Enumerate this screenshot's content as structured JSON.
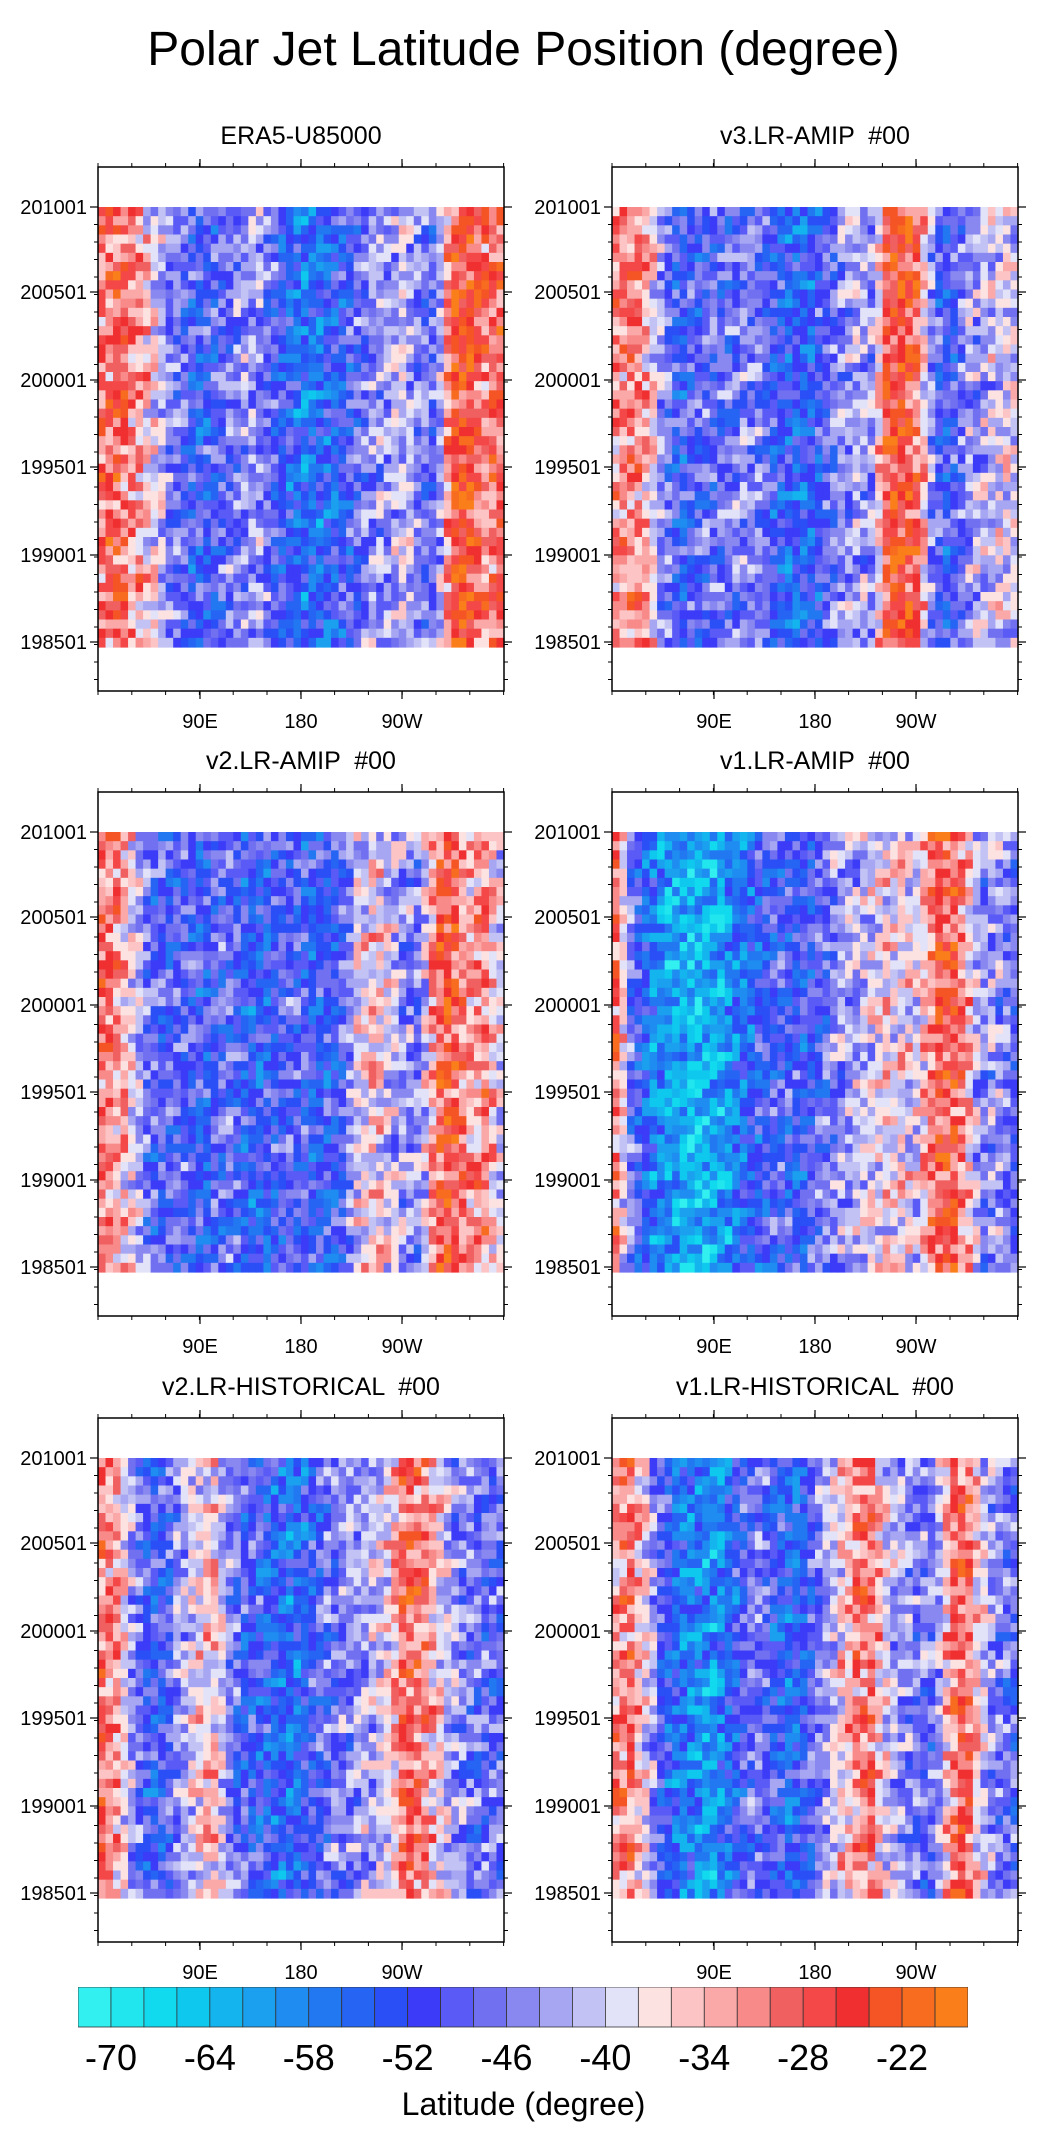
{
  "title": "Polar Jet Latitude Position (degree)",
  "colorbar": {
    "label": "Latitude (degree)",
    "levels": [
      -70,
      -68,
      -66,
      -64,
      -62,
      -60,
      -58,
      -56,
      -54,
      -52,
      -50,
      -48,
      -46,
      -44,
      -42,
      -40,
      -38,
      -36,
      -34,
      -32,
      -30,
      -28,
      -26,
      -24,
      -22,
      -20
    ],
    "tick_labels": [
      "-70",
      "-64",
      "-58",
      "-52",
      "-46",
      "-40",
      "-34",
      "-28",
      "-22"
    ],
    "colors": [
      "#33f0f0",
      "#22e6ee",
      "#11d9ee",
      "#0fc8ee",
      "#14b4ee",
      "#1aa0ee",
      "#1e8cf0",
      "#2278f0",
      "#2664f4",
      "#2a4ff6",
      "#3b3bf8",
      "#5a5af6",
      "#7070f0",
      "#8888f0",
      "#a6a6f2",
      "#c2c2f4",
      "#e2e2f8",
      "#fde2e2",
      "#fcc4c4",
      "#faa8a8",
      "#f88a8a",
      "#f06060",
      "#f44848",
      "#f03030",
      "#f55525",
      "#f86c20",
      "#fa7f1a"
    ]
  },
  "chart_data": [
    {
      "type": "heatmap",
      "title": "ERA5-U85000",
      "x_tick_labels": [
        "90E",
        "180",
        "90W"
      ],
      "y_tick_labels": [
        "201001",
        "200501",
        "200001",
        "199501",
        "199001",
        "198501"
      ],
      "profile": [
        -30,
        -28,
        -32,
        -36,
        -44,
        -48,
        -52,
        -50,
        -47,
        -44,
        -44,
        -50,
        -54,
        -56,
        -55,
        -52,
        -48,
        -44,
        -44,
        -40,
        -46,
        -48,
        -25,
        -24,
        -30,
        -28
      ]
    },
    {
      "type": "heatmap",
      "title": "v3.LR-AMIP  #00",
      "x_tick_labels": [
        "90E",
        "180",
        "90W"
      ],
      "y_tick_labels": [
        "201001",
        "200501",
        "200001",
        "199501",
        "199001",
        "198501"
      ],
      "profile": [
        -32,
        -30,
        -34,
        -46,
        -52,
        -50,
        -48,
        -48,
        -46,
        -46,
        -52,
        -54,
        -55,
        -50,
        -46,
        -42,
        -44,
        -28,
        -24,
        -30,
        -48,
        -52,
        -44,
        -42,
        -40,
        -40
      ]
    },
    {
      "type": "heatmap",
      "title": "v2.LR-AMIP  #00",
      "x_tick_labels": [
        "90E",
        "180",
        "90W"
      ],
      "y_tick_labels": [
        "201001",
        "200501",
        "200001",
        "199501",
        "199001",
        "198501"
      ],
      "profile": [
        -30,
        -32,
        -38,
        -50,
        -50,
        -48,
        -52,
        -50,
        -48,
        -52,
        -54,
        -50,
        -48,
        -52,
        -52,
        -50,
        -40,
        -36,
        -40,
        -44,
        -46,
        -28,
        -26,
        -34,
        -30,
        -40
      ]
    },
    {
      "type": "heatmap",
      "title": "v1.LR-AMIP  #00",
      "x_tick_labels": [
        "90E",
        "180",
        "90W"
      ],
      "y_tick_labels": [
        "201001",
        "200501",
        "200001",
        "199501",
        "199001",
        "198501"
      ],
      "profile": [
        -30,
        -48,
        -56,
        -60,
        -62,
        -64,
        -62,
        -60,
        -56,
        -52,
        -50,
        -50,
        -52,
        -48,
        -44,
        -42,
        -40,
        -38,
        -38,
        -40,
        -28,
        -26,
        -32,
        -46,
        -44,
        -48
      ]
    },
    {
      "type": "heatmap",
      "title": "v2.LR-HISTORICAL  #00",
      "x_tick_labels": [
        "90E",
        "180",
        "90W"
      ],
      "y_tick_labels": [
        "201001",
        "200501",
        "200001",
        "199501",
        "199001",
        "198501"
      ],
      "profile": [
        -30,
        -34,
        -44,
        -52,
        -50,
        -44,
        -38,
        -34,
        -46,
        -50,
        -52,
        -54,
        -56,
        -52,
        -48,
        -46,
        -44,
        -42,
        -38,
        -28,
        -30,
        -36,
        -44,
        -46,
        -48,
        -48
      ]
    },
    {
      "type": "heatmap",
      "title": "v1.LR-HISTORICAL  #00",
      "x_tick_labels": [
        "90E",
        "180",
        "90W"
      ],
      "y_tick_labels": [
        "201001",
        "200501",
        "200001",
        "199501",
        "199001",
        "198501"
      ],
      "profile": [
        -32,
        -30,
        -40,
        -52,
        -56,
        -58,
        -60,
        -56,
        -50,
        -46,
        -52,
        -54,
        -52,
        -44,
        -38,
        -32,
        -30,
        -40,
        -44,
        -46,
        -48,
        -30,
        -28,
        -40,
        -46,
        -48
      ]
    }
  ]
}
